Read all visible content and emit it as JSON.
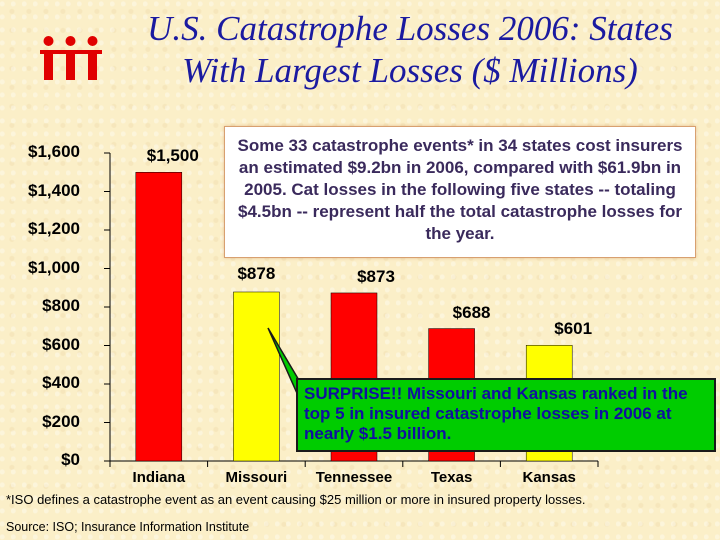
{
  "title": {
    "line1": "U.S. Catastrophe Losses 2006: States",
    "line2": "With Largest Losses ($ Millions)"
  },
  "logo": {
    "icon": "iii-logo-icon",
    "color": "#e00000"
  },
  "callout_top": {
    "text": "Some 33 catastrophe events* in 34 states cost insurers an estimated $9.2bn in 2006, compared with $61.9bn in 2005. Cat losses in the following five states -- totaling $4.5bn -- represent half the total catastrophe losses for the year."
  },
  "callout_surprise": {
    "text": "SURPRISE!! Missouri and Kansas ranked in the top 5 in insured catastrophe losses in 2006 at nearly $1.5 billion."
  },
  "footnote": "*ISO defines a catastrophe event as an event causing $25 million or more in insured property losses.",
  "source": "Source: ISO; Insurance Information Institute",
  "chart_data": {
    "type": "bar",
    "categories": [
      "Indiana",
      "Missouri",
      "Tennessee",
      "Texas",
      "Kansas"
    ],
    "values": [
      1500,
      878,
      873,
      688,
      601
    ],
    "value_labels": [
      "$1,500",
      "$878",
      "$873",
      "$688",
      "$601"
    ],
    "bar_colors": [
      "#ff0000",
      "#ffff00",
      "#ff0000",
      "#ff0000",
      "#ffff00"
    ],
    "ylim": [
      0,
      1600
    ],
    "yticks": [
      0,
      200,
      400,
      600,
      800,
      1000,
      1200,
      1400,
      1600
    ],
    "ytick_labels": [
      "$0",
      "$200",
      "$400",
      "$600",
      "$800",
      "$1,000",
      "$1,200",
      "$1,400",
      "$1,600"
    ],
    "grid": false,
    "legend": "none"
  }
}
